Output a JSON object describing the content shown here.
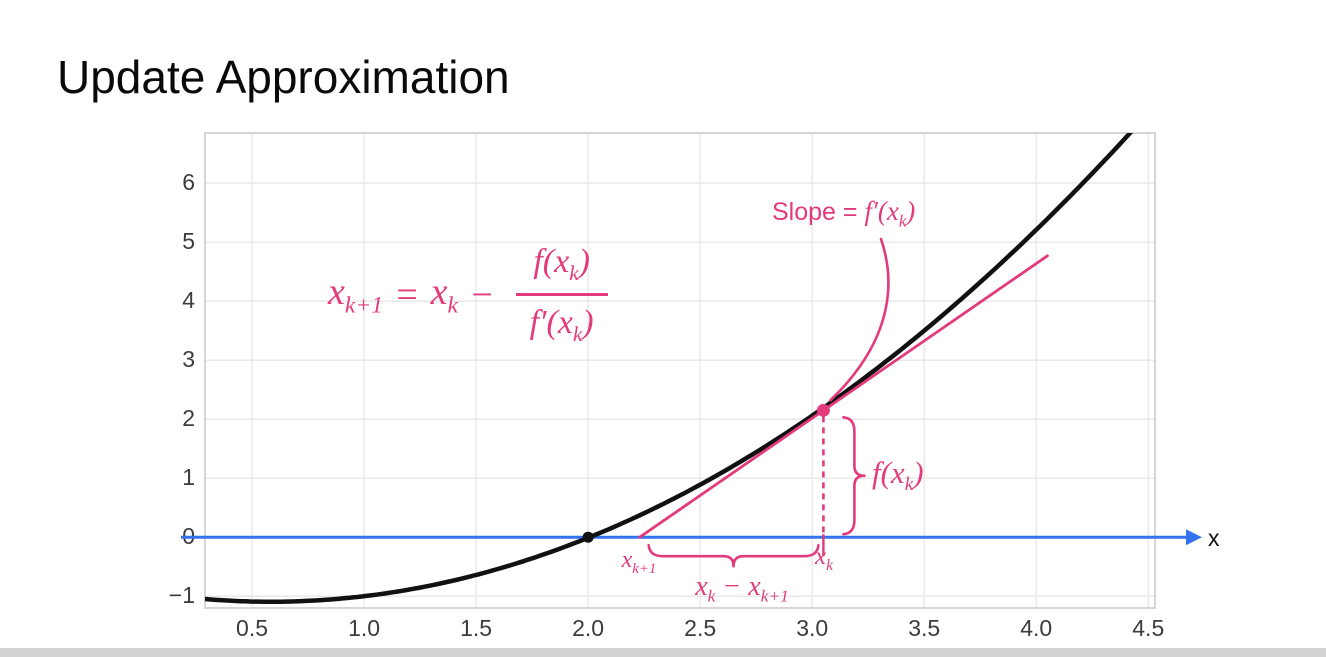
{
  "title": "Update Approximation",
  "chart_data": {
    "type": "line",
    "description": "Newton's method update step: black curve f(x) crossing zero at x=2, pink tangent line at x_k with drop to axis",
    "xlim": [
      0.29,
      4.53
    ],
    "ylim": [
      -1.2,
      6.85
    ],
    "x_ticks": {
      "values": [
        0.5,
        1.0,
        1.5,
        2.0,
        2.5,
        3.0,
        3.5,
        4.0,
        4.5
      ],
      "labels": [
        "0.5",
        "1.0",
        "1.5",
        "2.0",
        "2.5",
        "3.0",
        "3.5",
        "4.0",
        "4.5"
      ]
    },
    "y_ticks": {
      "values": [
        -1,
        0,
        1,
        2,
        3,
        4,
        5,
        6
      ],
      "labels": [
        "−1",
        "0",
        "1",
        "2",
        "3",
        "4",
        "5",
        "6"
      ]
    },
    "grid": true,
    "grid_color": "#e7e7e7",
    "border_color": "#c9c9c9",
    "curve": {
      "formula": "f(x) ≈ 0.54x² − 0.63x − 0.91 (root at x = 2)",
      "a": 0.54,
      "b": -0.63,
      "c": -0.91,
      "color": "#111111",
      "root_x": 2.0
    },
    "axis": {
      "color": "#3373ef",
      "y": 0
    },
    "newton": {
      "x_k": 3.05,
      "f_xk": 2.15,
      "x_k1": 2.23,
      "slope": 2.62,
      "tangent_x_end": 4.05,
      "color": "#e23a7b"
    }
  },
  "annotations": {
    "formula": {
      "lhs_var": "x",
      "lhs_sub": "k+1",
      "equals": "=",
      "rhs_var": "x",
      "rhs_sub": "k",
      "minus": "−",
      "num_f": "f(x",
      "num_sub": "k",
      "num_close": ")",
      "den_f": "f′(x",
      "den_sub": "k",
      "den_close": ")"
    },
    "slope_label": {
      "prefix": "Slope = ",
      "f_open": "f′(x",
      "sub": "k",
      "close": ")"
    },
    "fxk_label": {
      "f_open": "f(x",
      "sub": "k",
      "close": ")"
    },
    "xk1_tick": {
      "var": "x",
      "sub": "k+1"
    },
    "xk_tick": {
      "var": "x",
      "sub": "k"
    },
    "diff_label": {
      "var1": "x",
      "sub1": "k",
      "minus": " − ",
      "var2": "x",
      "sub2": "k+1"
    },
    "axis_label": "x"
  }
}
